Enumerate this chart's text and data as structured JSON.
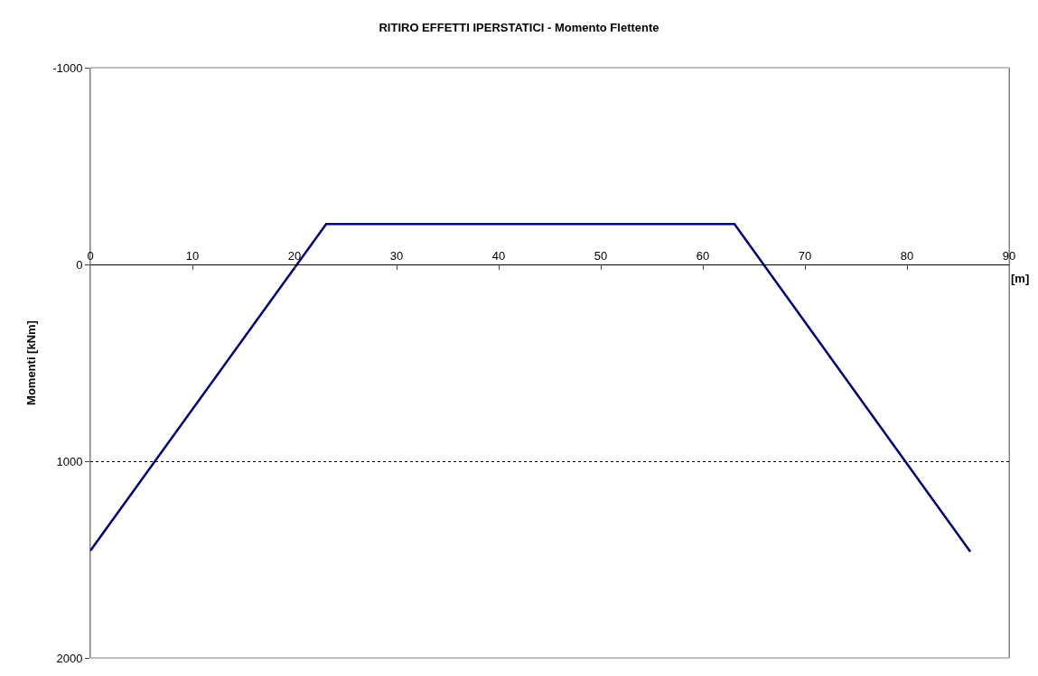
{
  "chart_data": {
    "type": "line",
    "title": "RITIRO EFFETTI IPERSTATICI - Momento Flettente",
    "xlabel": "[m]",
    "ylabel": "Momenti [kNm]",
    "series": [
      {
        "color": "#000080",
        "x": [
          0,
          23.1,
          63.1,
          86.2
        ],
        "values": [
          1455,
          -205,
          -205,
          1460
        ]
      }
    ],
    "xlim": [
      0,
      90
    ],
    "xticks": [
      0,
      10,
      20,
      30,
      40,
      50,
      60,
      70,
      80,
      90
    ],
    "ylim": [
      2000,
      -1000
    ],
    "yticks": [
      -1000,
      0,
      1000,
      2000
    ],
    "grid": "y",
    "marker": "none",
    "line_style": "solid"
  }
}
